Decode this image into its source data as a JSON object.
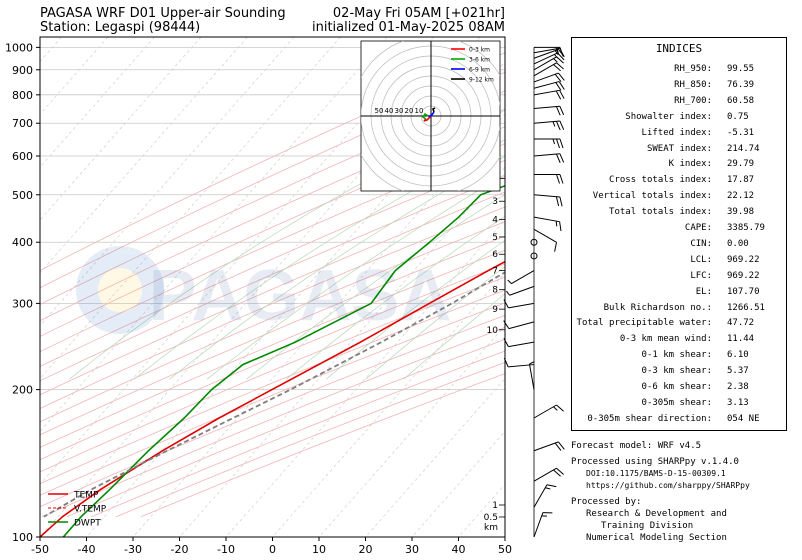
{
  "header": {
    "title_line1": "PAGASA WRF D01 Upper-air Sounding",
    "title_line2": "Station: Legaspi (98444)",
    "valid_line1": "02-May Fri 05AM [+021hr]",
    "valid_line2": "initialized 01-May-2025 08AM"
  },
  "watermark": "PAGASA",
  "chart_data": {
    "type": "line",
    "title": "PAGASA WRF D01 Upper-air Sounding",
    "x_axis": {
      "label": "",
      "ticks": [
        -50,
        -40,
        -30,
        -20,
        -10,
        0,
        10,
        20,
        30,
        40,
        50
      ],
      "range": [
        -50,
        50
      ]
    },
    "y_axis": {
      "label": "",
      "scale": "log",
      "ticks": [
        100,
        200,
        300,
        400,
        500,
        600,
        700,
        800,
        900,
        1000
      ],
      "range": [
        1050,
        100
      ]
    },
    "height_km_ticks": [
      "10",
      "9",
      "8",
      "7",
      "6",
      "5",
      "4",
      "3",
      "2",
      "1",
      "0.5",
      "km"
    ],
    "legend": {
      "placement": "lower-left",
      "entries": [
        "TEMP",
        "V.TEMP",
        "DWPT"
      ]
    },
    "grid": true,
    "series": [
      {
        "name": "TEMP",
        "color": "#e00000",
        "points": [
          [
            1000,
            28.0
          ],
          [
            975,
            26.5
          ],
          [
            950,
            25.0
          ],
          [
            925,
            24.0
          ],
          [
            900,
            23.0
          ],
          [
            850,
            21.5
          ],
          [
            800,
            20.0
          ],
          [
            750,
            18.0
          ],
          [
            700,
            16.0
          ],
          [
            650,
            14.5
          ],
          [
            600,
            13.0
          ],
          [
            550,
            12.0
          ],
          [
            500,
            10.0
          ],
          [
            450,
            6.0
          ],
          [
            400,
            2.0
          ],
          [
            350,
            -4.0
          ],
          [
            300,
            -10.5
          ],
          [
            250,
            -18.0
          ],
          [
            200,
            -28.0
          ],
          [
            175,
            -34.0
          ],
          [
            150,
            -40.0
          ],
          [
            125,
            -46.0
          ],
          [
            110,
            -49.0
          ],
          [
            100,
            -50.0
          ]
        ]
      },
      {
        "name": "V.TEMP",
        "color": "#e00000",
        "points": [
          [
            1000,
            31.0
          ],
          [
            975,
            29.0
          ],
          [
            950,
            28.0
          ],
          [
            925,
            27.0
          ],
          [
            900,
            26.0
          ],
          [
            850,
            24.0
          ],
          [
            800,
            22.0
          ],
          [
            750,
            19.5
          ],
          [
            700,
            17.0
          ],
          [
            650,
            15.5
          ],
          [
            600,
            13.8
          ],
          [
            550,
            12.5
          ],
          [
            500,
            10.5
          ],
          [
            450,
            6.3
          ],
          [
            400,
            2.2
          ],
          [
            350,
            -3.9
          ],
          [
            300,
            -10.4
          ],
          [
            250,
            -17.9
          ],
          [
            200,
            -28.0
          ]
        ]
      },
      {
        "name": "DWPT",
        "color": "#008800",
        "points": [
          [
            1000,
            24.0
          ],
          [
            975,
            23.5
          ],
          [
            950,
            22.0
          ],
          [
            925,
            21.0
          ],
          [
            900,
            18.0
          ],
          [
            850,
            13.0
          ],
          [
            800,
            9.0
          ],
          [
            750,
            6.0
          ],
          [
            700,
            3.0
          ],
          [
            650,
            -1.0
          ],
          [
            600,
            -6.0
          ],
          [
            550,
            -12.0
          ],
          [
            500,
            -20.0
          ],
          [
            450,
            -20.5
          ],
          [
            400,
            -22.0
          ],
          [
            350,
            -24.0
          ],
          [
            300,
            -23.0
          ],
          [
            250,
            -32.0
          ],
          [
            225,
            -39.0
          ],
          [
            200,
            -41.0
          ],
          [
            175,
            -41.5
          ],
          [
            150,
            -43.0
          ],
          [
            125,
            -44.0
          ],
          [
            110,
            -45.0
          ],
          [
            100,
            -45.0
          ]
        ]
      },
      {
        "name": "",
        "color": "#7f7f7f",
        "points": [
          [
            1000,
            31.0
          ],
          [
            950,
            29.0
          ],
          [
            900,
            27.0
          ],
          [
            850,
            25.5
          ],
          [
            800,
            24.0
          ],
          [
            750,
            22.3
          ],
          [
            700,
            20.5
          ],
          [
            650,
            18.6
          ],
          [
            600,
            16.4
          ],
          [
            550,
            14.0
          ],
          [
            500,
            11.4
          ],
          [
            450,
            8.2
          ],
          [
            400,
            4.6
          ],
          [
            350,
            0.2
          ],
          [
            300,
            -5.6
          ],
          [
            250,
            -13.5
          ],
          [
            200,
            -24.0
          ],
          [
            175,
            -31.0
          ],
          [
            150,
            -39.0
          ],
          [
            125,
            -48.0
          ],
          [
            110,
            -53.0
          ]
        ]
      }
    ],
    "hodograph": {
      "rings_kt": [
        "10",
        "20",
        "30",
        "40",
        "50"
      ],
      "legend": [
        "0-3 km",
        "3-6 km",
        "6-9 km",
        "9-12 km"
      ],
      "layers": [
        {
          "name": "0-3 km",
          "color": "#ff0000",
          "points": [
            [
              0,
              0
            ],
            [
              -4,
              -4
            ],
            [
              -7,
              -5
            ],
            [
              -5,
              -3
            ]
          ]
        },
        {
          "name": "3-6 km",
          "color": "#00aa00",
          "points": [
            [
              -5,
              -3
            ],
            [
              -8,
              -1
            ],
            [
              -6,
              2
            ],
            [
              -3,
              0
            ]
          ]
        },
        {
          "name": "6-9 km",
          "color": "#0000ff",
          "points": [
            [
              -3,
              0
            ],
            [
              0,
              0
            ],
            [
              3,
              4
            ]
          ]
        },
        {
          "name": "9-12 km",
          "color": "#000000",
          "points": [
            [
              3,
              4
            ],
            [
              2,
              7
            ],
            [
              4,
              8
            ]
          ]
        }
      ]
    }
  },
  "indices": {
    "title": "INDICES",
    "rows": [
      {
        "label": "RH_950:",
        "value": "99.55"
      },
      {
        "label": "RH_850:",
        "value": "76.39"
      },
      {
        "label": "RH_700:",
        "value": "60.58"
      },
      {
        "label": "Showalter index:",
        "value": "0.75"
      },
      {
        "label": "Lifted index:",
        "value": "-5.31"
      },
      {
        "label": "SWEAT index:",
        "value": "214.74"
      },
      {
        "label": "K index:",
        "value": "29.79"
      },
      {
        "label": "Cross totals index:",
        "value": "17.87"
      },
      {
        "label": "Vertical totals index:",
        "value": "22.12"
      },
      {
        "label": "Total totals index:",
        "value": "39.98"
      },
      {
        "label": "CAPE:",
        "value": "3385.79"
      },
      {
        "label": "CIN:",
        "value": "0.00"
      },
      {
        "label": "LCL:",
        "value": "969.22"
      },
      {
        "label": "LFC:",
        "value": "969.22"
      },
      {
        "label": "EL:",
        "value": "107.70"
      },
      {
        "label": "Bulk Richardson no.:",
        "value": "1266.51"
      },
      {
        "label": "Total precipitable water:",
        "value": "47.72"
      },
      {
        "label": "0-3 km mean wind:",
        "value": "11.44"
      },
      {
        "label": "0-1 km shear:",
        "value": "6.10"
      },
      {
        "label": "0-3 km shear:",
        "value": "5.37"
      },
      {
        "label": "0-6 km shear:",
        "value": "2.38"
      },
      {
        "label": "0-305m shear:",
        "value": "3.13"
      },
      {
        "label": "0-305m shear direction:",
        "value": "054 NE"
      }
    ]
  },
  "footer": {
    "model": "Forecast model: WRF v4.5",
    "processed": "Processed using SHARPpy v.1.4.0",
    "doi": "DOI:10.1175/BAMS-D-15-00309.1",
    "url": "https://github.com/sharppy/SHARPpy",
    "by": "Processed by:",
    "org1": "Research & Development and",
    "org2": "Training Division",
    "org3": "Numerical Modeling Section"
  },
  "wind_barbs": [
    {
      "p": 1000,
      "dir": 90,
      "spd": 15
    },
    {
      "p": 975,
      "dir": 80,
      "spd": 15
    },
    {
      "p": 950,
      "dir": 70,
      "spd": 15
    },
    {
      "p": 925,
      "dir": 65,
      "spd": 15
    },
    {
      "p": 900,
      "dir": 60,
      "spd": 15
    },
    {
      "p": 875,
      "dir": 60,
      "spd": 20
    },
    {
      "p": 850,
      "dir": 70,
      "spd": 20
    },
    {
      "p": 825,
      "dir": 75,
      "spd": 20
    },
    {
      "p": 800,
      "dir": 80,
      "spd": 20
    },
    {
      "p": 750,
      "dir": 85,
      "spd": 20
    },
    {
      "p": 700,
      "dir": 85,
      "spd": 25
    },
    {
      "p": 650,
      "dir": 90,
      "spd": 25
    },
    {
      "p": 600,
      "dir": 85,
      "spd": 20
    },
    {
      "p": 550,
      "dir": 90,
      "spd": 20
    },
    {
      "p": 500,
      "dir": 95,
      "spd": 20
    },
    {
      "p": 450,
      "dir": 100,
      "spd": 15
    },
    {
      "p": 425,
      "dir": 120,
      "spd": 10
    },
    {
      "p": 400,
      "dir": 0,
      "spd": 0
    },
    {
      "p": 375,
      "dir": 0,
      "spd": 0
    },
    {
      "p": 350,
      "dir": 240,
      "spd": 5
    },
    {
      "p": 325,
      "dir": 250,
      "spd": 5
    },
    {
      "p": 300,
      "dir": 260,
      "spd": 10
    },
    {
      "p": 275,
      "dir": 255,
      "spd": 10
    },
    {
      "p": 250,
      "dir": 260,
      "spd": 10
    },
    {
      "p": 225,
      "dir": 265,
      "spd": 10
    },
    {
      "p": 200,
      "dir": 350,
      "spd": 5
    },
    {
      "p": 175,
      "dir": 60,
      "spd": 15
    },
    {
      "p": 150,
      "dir": 70,
      "spd": 20
    },
    {
      "p": 130,
      "dir": 60,
      "spd": 20
    },
    {
      "p": 115,
      "dir": 30,
      "spd": 15
    },
    {
      "p": 100,
      "dir": 20,
      "spd": 15
    }
  ]
}
